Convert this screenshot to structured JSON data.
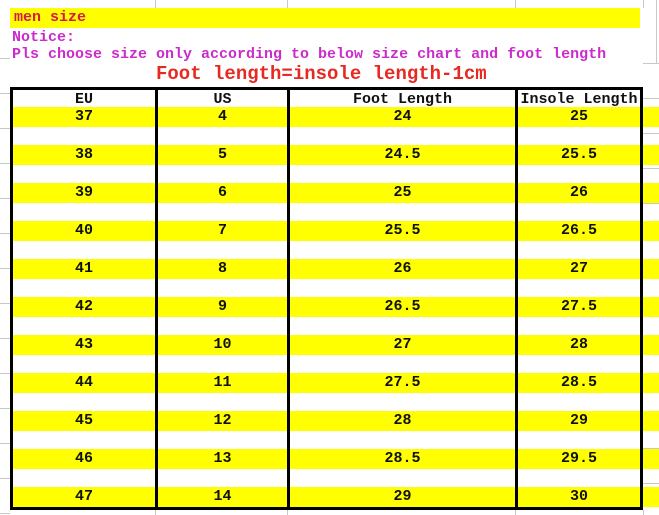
{
  "page": {
    "title_cell": "men size",
    "notice": "Notice:",
    "instruction": "Pls choose size only according to below size chart and foot length",
    "formula": "Foot length=insole length-1cm"
  },
  "table": {
    "headers": [
      "EU",
      "US",
      "Foot Length",
      "Insole Length"
    ],
    "rows": [
      [
        "37",
        "4",
        "24",
        "25"
      ],
      [
        "38",
        "5",
        "24.5",
        "25.5"
      ],
      [
        "39",
        "6",
        "25",
        "26"
      ],
      [
        "40",
        "7",
        "25.5",
        "26.5"
      ],
      [
        "41",
        "8",
        "26",
        "27"
      ],
      [
        "42",
        "9",
        "26.5",
        "27.5"
      ],
      [
        "43",
        "10",
        "27",
        "28"
      ],
      [
        "44",
        "11",
        "27.5",
        "28.5"
      ],
      [
        "45",
        "12",
        "28",
        "29"
      ],
      [
        "46",
        "13",
        "28.5",
        "29.5"
      ],
      [
        "47",
        "14",
        "29",
        "30"
      ]
    ]
  },
  "colors": {
    "highlight": "#ffff00",
    "title_text": "#d81848",
    "notice_text": "#cb2bcb",
    "formula_text": "#e62a22",
    "table_text": "#111111",
    "table_border": "#000000",
    "grid_line": "#c8c8c8"
  }
}
